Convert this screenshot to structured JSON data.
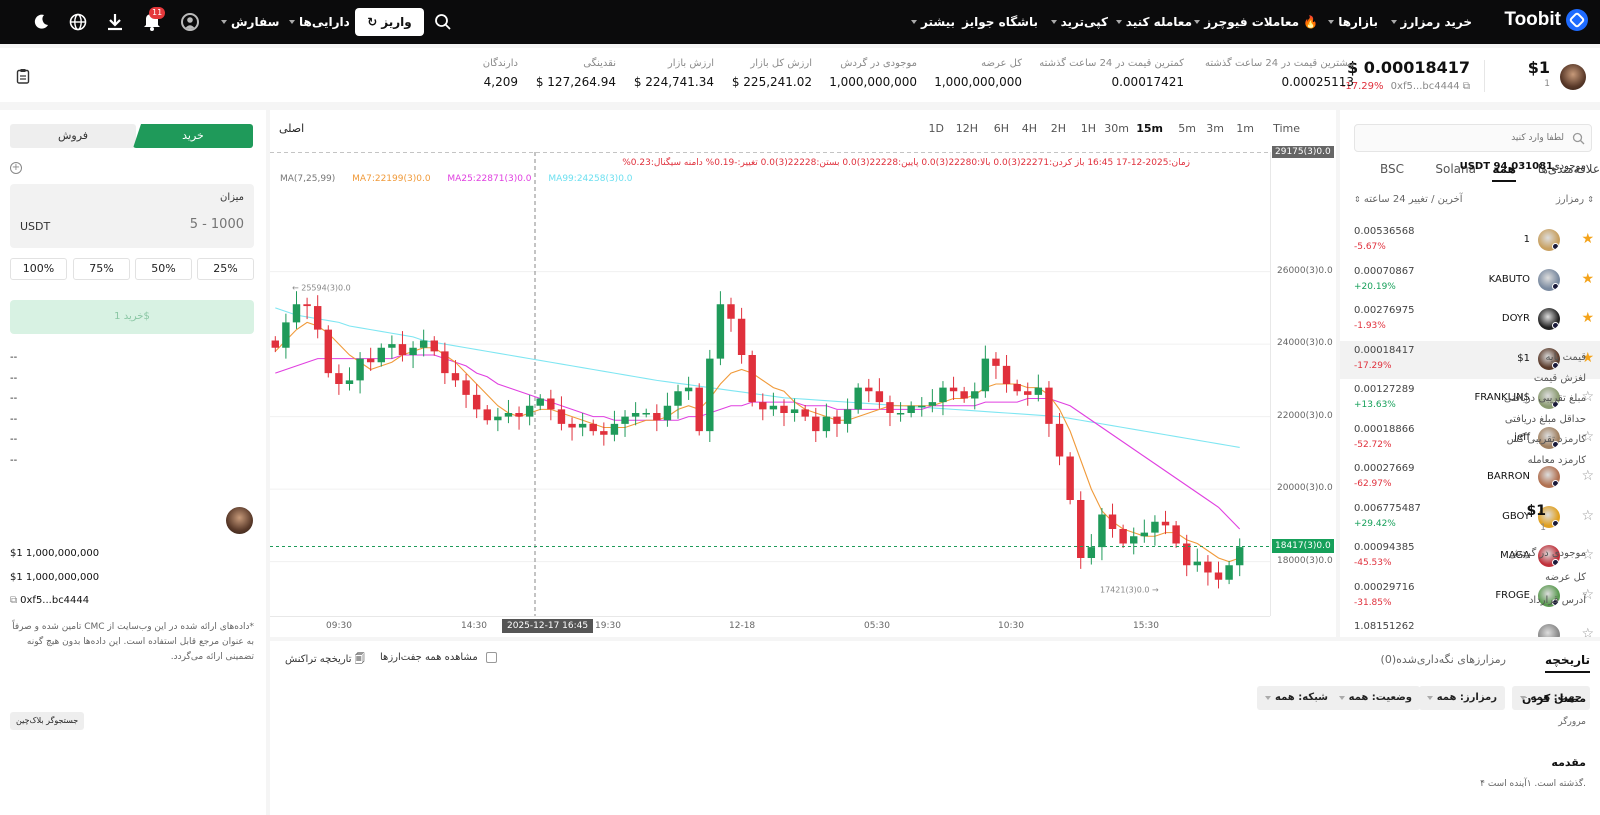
{
  "brand": {
    "name": "Toobit",
    "color": "#1e6bff"
  },
  "topnav": {
    "buy_crypto": "خرید رمزارز",
    "markets": "بازارها",
    "futures": "معاملات فیوچرز",
    "trade": "معامله کنید",
    "copytrade": "کپی‌ترید",
    "rewards": "باشگاه جوایز",
    "more": "بیشتر",
    "orders": "سفارش",
    "assets": "دارایی‌ها",
    "deposit": "واریز",
    "notif_count": "11"
  },
  "token": {
    "name": "$1",
    "sub": "1",
    "price": "$ 0.00018417",
    "address": "0xf5...bc4444",
    "change": "-17.29%"
  },
  "stats": [
    {
      "label": "بیشترین قیمت در 24 ساعت گذشته",
      "value": "0.00025113"
    },
    {
      "label": "کمترین قیمت در 24 ساعت گذشته",
      "value": "0.00017421"
    },
    {
      "label": "کل عرضه",
      "value": "1,000,000,000"
    },
    {
      "label": "موجودی در گردش",
      "value": "1,000,000,000"
    },
    {
      "label": "ارزش کل بازار",
      "value": "$ 225,241.02"
    },
    {
      "label": "ارزش بازار",
      "value": "$ 224,741.34"
    },
    {
      "label": "نقدینگی",
      "value": "$ 127,264.94"
    },
    {
      "label": "دارندگان",
      "value": "4,209"
    }
  ],
  "market_list": {
    "search_placeholder": "لطفا وارد کنید",
    "tabs": [
      "علاقه‌مندی‌ها",
      "همه",
      "Solana",
      "BSC"
    ],
    "active_tab": "همه",
    "col_name": "رمزارز",
    "col_price": "آخرین / تغییر 24 ساعته",
    "items": [
      {
        "name": "1",
        "price": "0.00536568",
        "change": "-5.67%",
        "up": false,
        "fav": true,
        "color": "#c8a060"
      },
      {
        "name": "KABUTO",
        "price": "0.00070867",
        "change": "+20.19%",
        "up": true,
        "fav": true,
        "color": "#7a8aa0"
      },
      {
        "name": "DOYR",
        "price": "0.00276975",
        "change": "-1.93%",
        "up": false,
        "fav": true,
        "color": "#222222"
      },
      {
        "name": "$1",
        "price": "0.00018417",
        "change": "-17.29%",
        "up": false,
        "fav": true,
        "color": "#5a3a2a"
      },
      {
        "name": "FRANKLIN$",
        "price": "0.00127289",
        "change": "+13.63%",
        "up": true,
        "fav": false,
        "color": "#8a9a70"
      },
      {
        "name": "jeff",
        "price": "0.00018866",
        "change": "-52.72%",
        "up": false,
        "fav": false,
        "color": "#a08060"
      },
      {
        "name": "BARRON",
        "price": "0.00027669",
        "change": "-62.97%",
        "up": false,
        "fav": false,
        "color": "#b07050"
      },
      {
        "name": "GBOY",
        "price": "0.006775487",
        "change": "+29.42%",
        "up": true,
        "fav": false,
        "color": "#e0a020"
      },
      {
        "name": "MAGA",
        "price": "0.00094385",
        "change": "-45.53%",
        "up": false,
        "fav": false,
        "color": "#c0303a"
      },
      {
        "name": "FROGE",
        "price": "0.00029716",
        "change": "-31.85%",
        "up": false,
        "fav": false,
        "color": "#5a9a50"
      },
      {
        "name": "",
        "price": "1.08151262",
        "change": "",
        "up": true,
        "fav": false,
        "color": "#888888"
      }
    ]
  },
  "chart_header": {
    "main_label": "اصلی",
    "timeframes": [
      "Time",
      "1m",
      "3m",
      "5m",
      "15m",
      "30m",
      "1H",
      "2H",
      "4H",
      "6H",
      "12H",
      "1D"
    ],
    "active_tf": "15m",
    "ohlc": "زمان:2025-12-17 16:45 باز کردن:22271(3)0.0 بالا:22280(3)0.0 پایین:22228(3)0.0 بستن:22228(3)0.0 تغییر:-0.19% دامنه سیگنال:0.23%",
    "ma": [
      "MA(7,25,99)",
      "MA7:22199(3)0.0",
      "MA25:22871(3)0.0",
      "MA99:24258(3)0.0"
    ],
    "top_label": "29175(3)0.0",
    "last_label": "18417(3)0.0",
    "high_label": "25594(3)0.0",
    "low_label": "17421(3)0.0",
    "crosshair_time": "2025-12-17 16:45"
  },
  "chart_data": {
    "type": "candlestick",
    "x_ticks": [
      "09:30",
      "14:30",
      "19:30",
      "12-18",
      "05:30",
      "10:30",
      "15:30"
    ],
    "y_ticks": [
      {
        "v": 26000,
        "label": "26000(3)0.0"
      },
      {
        "v": 24000,
        "label": "24000(3)0.0"
      },
      {
        "v": 22000,
        "label": "22000(3)0.0"
      },
      {
        "v": 20000,
        "label": "20000(3)0.0"
      },
      {
        "v": 18000,
        "label": "18000(3)0.0"
      }
    ],
    "ylim": [
      16500,
      29300
    ],
    "last_price": 18417,
    "closes": [
      23900,
      24600,
      25100,
      25050,
      24400,
      23200,
      22900,
      23000,
      23600,
      23500,
      23900,
      24000,
      23700,
      23900,
      24100,
      23800,
      23200,
      23000,
      22600,
      22200,
      21900,
      22000,
      22100,
      22000,
      22300,
      22500,
      22200,
      21800,
      21700,
      21800,
      21600,
      21500,
      21800,
      22000,
      22100,
      22100,
      21900,
      22300,
      22700,
      22800,
      21600,
      23600,
      25100,
      24700,
      23700,
      22400,
      22200,
      22300,
      22100,
      22200,
      22000,
      21600,
      22000,
      21800,
      22200,
      22800,
      22700,
      22400,
      22100,
      22100,
      22300,
      22300,
      22400,
      22800,
      22700,
      22500,
      22700,
      23600,
      23400,
      22900,
      22700,
      22600,
      22800,
      21800,
      20900,
      19700,
      18100,
      18400,
      19300,
      18900,
      18500,
      18700,
      18800,
      19100,
      19000,
      18500,
      17900,
      18000,
      17700,
      17500,
      17900,
      18400
    ],
    "ma7": [
      23800,
      24100,
      24400,
      24600,
      24500,
      24300,
      24000,
      23700,
      23500,
      23300,
      23400,
      23500,
      23700,
      23800,
      23900,
      23900,
      23700,
      23500,
      23200,
      22900,
      22600,
      22300,
      22100,
      22000,
      22100,
      22200,
      22200,
      22100,
      22000,
      21900,
      21800,
      21700,
      21700,
      21700,
      21800,
      21900,
      21900,
      22000,
      22200,
      22300,
      22200,
      22500,
      22900,
      23200,
      23300,
      23200,
      23000,
      22800,
      22700,
      22400,
      22200,
      22100,
      22000,
      21900,
      21900,
      22000,
      22100,
      22200,
      22300,
      22300,
      22300,
      22300,
      22300,
      22400,
      22500,
      22500,
      22600,
      22800,
      22900,
      22900,
      22900,
      22800,
      22800,
      22600,
      22200,
      21600,
      20800,
      20000,
      19400,
      19100,
      18900,
      18800,
      18700,
      18700,
      18800,
      18800,
      18600,
      18500,
      18300,
      18100,
      18000,
      18100
    ],
    "ma25": [
      23200,
      23300,
      23400,
      23500,
      23600,
      23600,
      23600,
      23600,
      23600,
      23600,
      23600,
      23600,
      23700,
      23700,
      23700,
      23700,
      23600,
      23500,
      23400,
      23200,
      23100,
      22900,
      22800,
      22700,
      22600,
      22500,
      22400,
      22300,
      22200,
      22100,
      22000,
      22000,
      21900,
      21900,
      21900,
      21900,
      21900,
      21900,
      21900,
      22000,
      22000,
      22100,
      22200,
      22300,
      22300,
      22400,
      22400,
      22400,
      22400,
      22400,
      22300,
      22300,
      22300,
      22200,
      22200,
      22200,
      22200,
      22200,
      22200,
      22200,
      22200,
      22200,
      22300,
      22300,
      22300,
      22300,
      22300,
      22400,
      22400,
      22400,
      22400,
      22500,
      22500,
      22500,
      22400,
      22300,
      22100,
      21900,
      21700,
      21500,
      21300,
      21100,
      20900,
      20700,
      20500,
      20300,
      20100,
      19900,
      19700,
      19500,
      19200,
      18900
    ],
    "ma99": [
      25000,
      24900,
      24800,
      24750,
      24700,
      24650,
      24600,
      24500,
      24450,
      24400,
      24350,
      24300,
      24250,
      24200,
      24100,
      24050,
      24000,
      23950,
      23900,
      23850,
      23800,
      23750,
      23700,
      23650,
      23600,
      23550,
      23500,
      23450,
      23400,
      23350,
      23300,
      23250,
      23200,
      23150,
      23100,
      23050,
      23000,
      22960,
      22920,
      22880,
      22840,
      22800,
      22760,
      22720,
      22680,
      22640,
      22600,
      22560,
      22520,
      22500,
      22480,
      22460,
      22440,
      22420,
      22400,
      22380,
      22360,
      22340,
      22320,
      22300,
      22280,
      22260,
      22240,
      22220,
      22200,
      22180,
      22160,
      22140,
      22120,
      22100,
      22080,
      22060,
      22040,
      22020,
      22000,
      21950,
      21900,
      21850,
      21800,
      21750,
      21700,
      21650,
      21600,
      21550,
      21500,
      21450,
      21400,
      21350,
      21300,
      21250,
      21200,
      21150
    ]
  },
  "bottom": {
    "tab_history": "تاریخچه",
    "tab_holdings": "رمزارزهای نگه‌داری‌شده(0)",
    "view_all": "مشاهده همه جفت‌ارزها",
    "tx_history": "تاریخچه تراکنش",
    "filters": [
      "جهت: همه",
      "رمزارز: همه",
      "وضعیت: همه",
      "شبکه: همه"
    ]
  },
  "trade": {
    "buy": "خرید",
    "sell": "فروش",
    "balance_label": "موجودی",
    "balance": "USDT 94.031081",
    "amount_label": "میزان",
    "amount_placeholder": "5 - 1000",
    "currency": "USDT",
    "pcts": [
      "25%",
      "50%",
      "75%",
      "100%"
    ],
    "submit": "خرید 1$",
    "rows": [
      {
        "label": "قیمت پایه",
        "value": "--"
      },
      {
        "label": "لغزش قیمت",
        "value": "--"
      },
      {
        "label": "مبلغ تقریبی دریافتی",
        "value": "--"
      },
      {
        "label": "حداقل مبلغ دریافتی",
        "value": "--"
      },
      {
        "label": "کارمزد تقریبی گس",
        "value": "--"
      },
      {
        "label": "کارمزد معامله",
        "value": "--"
      }
    ]
  },
  "token_info": {
    "name": "$1",
    "sub": "1",
    "rows": [
      {
        "label": "موجودی در گردش",
        "value": "$1 1,000,000,000"
      },
      {
        "label": "کل عرضه",
        "value": "$1 1,000,000,000"
      },
      {
        "label": "آدرس قرارداد",
        "value": "0xf5...bc4444"
      }
    ],
    "disclaimer": "*داده‌های ارائه شده در این وب‌سایت از CMC تامین شده و صرفاً به عنوان مرجع قابل استفاده است. این داده‌ها بدون هیچ گونه تضمینی ارائه می‌گردد.",
    "connect_title": "متصل کردن",
    "browser_label": "مرورگر",
    "explorer": "جستجوگر بلاک‌چین",
    "intro_title": "مقدمه",
    "intro_text": "۴ گذشته است. ۱آینده است."
  }
}
